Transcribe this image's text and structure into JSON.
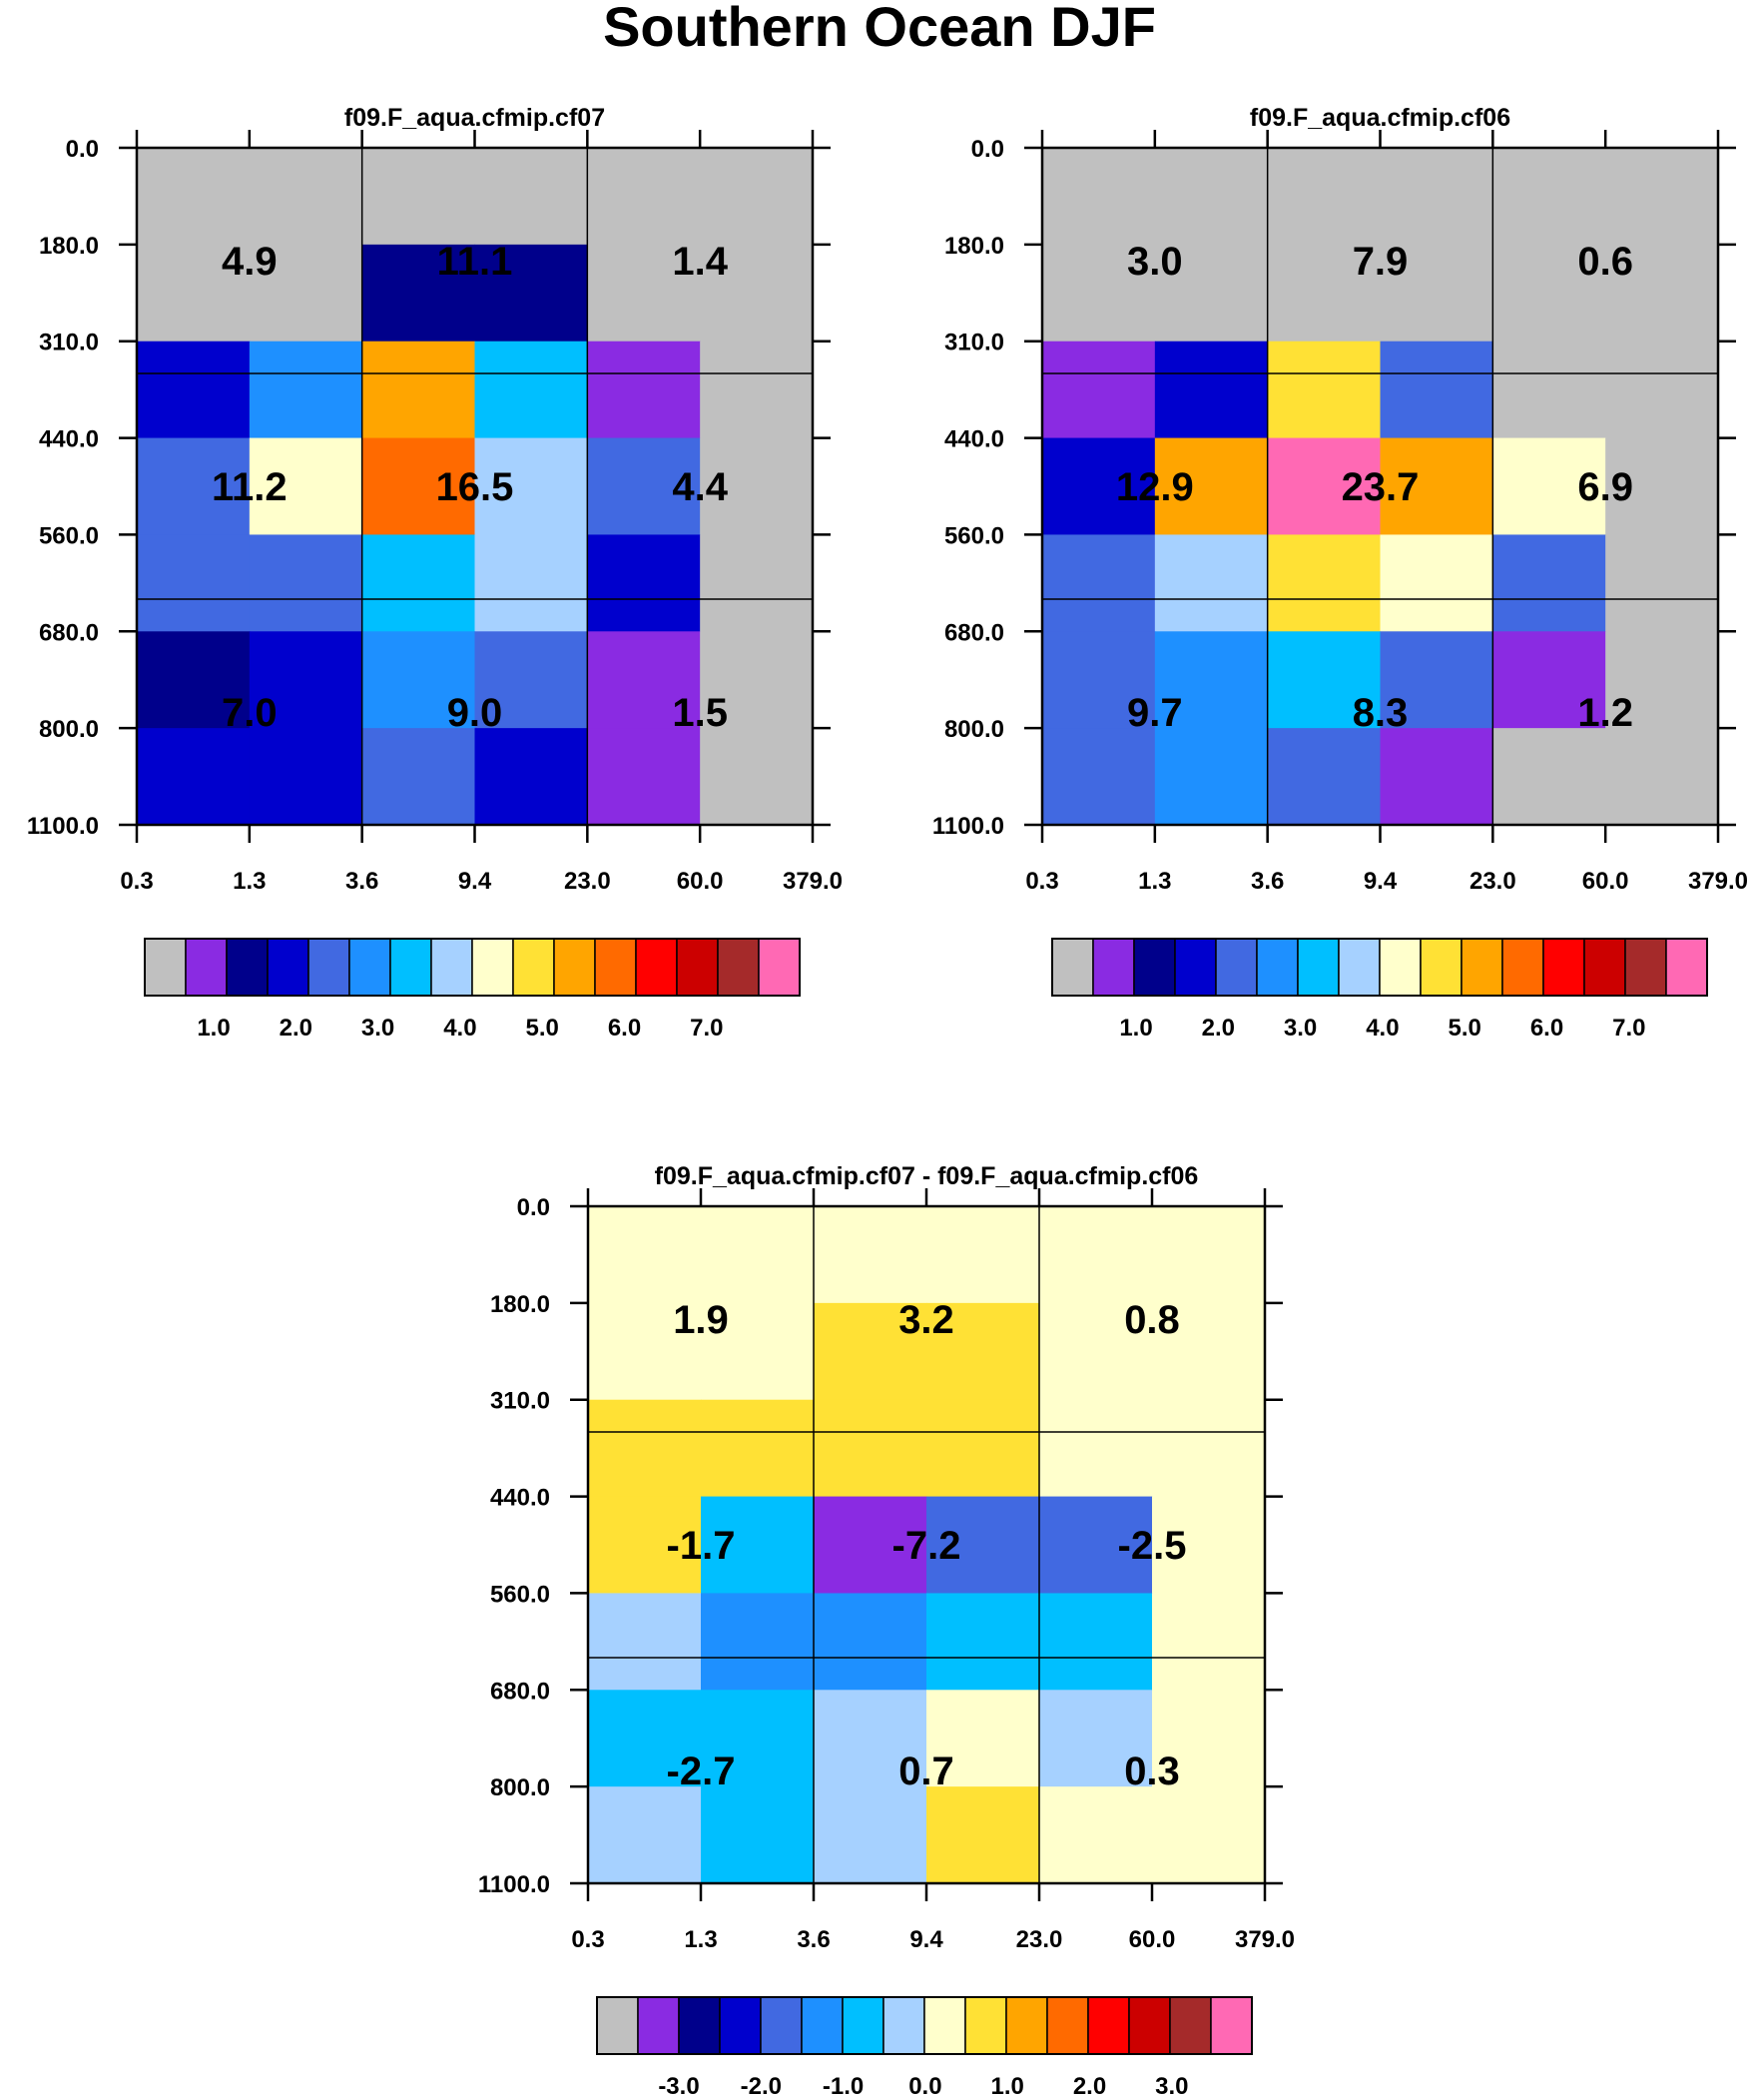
{
  "page_title": "Southern Ocean DJF",
  "colors": {
    "levels": [
      "#c0c0c0",
      "#8a2be2",
      "#00008b",
      "#0000cd",
      "#4169e1",
      "#1e90ff",
      "#00bfff",
      "#a6d1ff",
      "#ffffcc",
      "#ffe135",
      "#ffa500",
      "#ff6a00",
      "#ff0000",
      "#cc0000",
      "#a52a2a",
      "#ff69b4"
    ],
    "border": "#000000"
  },
  "chart_data": [
    {
      "type": "heatmap",
      "title": "f09.F_aqua.cfmip.cf07",
      "x_edges": [
        "0.3",
        "1.3",
        "3.6",
        "9.4",
        "23.0",
        "60.0",
        "379.0"
      ],
      "y_edges": [
        "0.0",
        "180.0",
        "310.0",
        "440.0",
        "560.0",
        "680.0",
        "800.0",
        "1100.0"
      ],
      "cell_levels": [
        [
          0,
          0,
          0,
          0,
          0,
          0
        ],
        [
          0,
          0,
          2,
          2,
          0,
          0
        ],
        [
          3,
          5,
          10,
          6,
          1,
          0
        ],
        [
          4,
          8,
          11,
          7,
          4,
          0
        ],
        [
          4,
          4,
          6,
          7,
          3,
          0
        ],
        [
          2,
          3,
          5,
          4,
          1,
          0
        ],
        [
          3,
          3,
          4,
          3,
          1,
          0
        ]
      ],
      "block_totals": [
        [
          "4.9",
          "11.1",
          "1.4"
        ],
        [
          "11.2",
          "16.5",
          "4.4"
        ],
        [
          "7.0",
          "9.0",
          "1.5"
        ]
      ],
      "colorbar_ticks": [
        "1.0",
        "2.0",
        "3.0",
        "4.0",
        "5.0",
        "6.0",
        "7.0"
      ]
    },
    {
      "type": "heatmap",
      "title": "f09.F_aqua.cfmip.cf06",
      "x_edges": [
        "0.3",
        "1.3",
        "3.6",
        "9.4",
        "23.0",
        "60.0",
        "379.0"
      ],
      "y_edges": [
        "0.0",
        "180.0",
        "310.0",
        "440.0",
        "560.0",
        "680.0",
        "800.0",
        "1100.0"
      ],
      "cell_levels": [
        [
          0,
          0,
          0,
          0,
          0,
          0
        ],
        [
          0,
          0,
          0,
          0,
          0,
          0
        ],
        [
          1,
          3,
          9,
          4,
          0,
          0
        ],
        [
          3,
          10,
          15,
          10,
          8,
          0
        ],
        [
          4,
          7,
          9,
          8,
          4,
          0
        ],
        [
          4,
          5,
          6,
          4,
          1,
          0
        ],
        [
          4,
          5,
          4,
          1,
          0,
          0
        ]
      ],
      "block_totals": [
        [
          "3.0",
          "7.9",
          "0.6"
        ],
        [
          "12.9",
          "23.7",
          "6.9"
        ],
        [
          "9.7",
          "8.3",
          "1.2"
        ]
      ],
      "colorbar_ticks": [
        "1.0",
        "2.0",
        "3.0",
        "4.0",
        "5.0",
        "6.0",
        "7.0"
      ]
    },
    {
      "type": "heatmap",
      "title": "f09.F_aqua.cfmip.cf07 - f09.F_aqua.cfmip.cf06",
      "x_edges": [
        "0.3",
        "1.3",
        "3.6",
        "9.4",
        "23.0",
        "60.0",
        "379.0"
      ],
      "y_edges": [
        "0.0",
        "180.0",
        "310.0",
        "440.0",
        "560.0",
        "680.0",
        "800.0",
        "1100.0"
      ],
      "cell_levels": [
        [
          8,
          8,
          8,
          8,
          8,
          8
        ],
        [
          8,
          8,
          9,
          9,
          8,
          8
        ],
        [
          9,
          9,
          9,
          9,
          8,
          8
        ],
        [
          9,
          6,
          1,
          4,
          4,
          8
        ],
        [
          7,
          5,
          5,
          6,
          6,
          8
        ],
        [
          6,
          6,
          7,
          8,
          7,
          8
        ],
        [
          7,
          6,
          7,
          9,
          8,
          8
        ]
      ],
      "block_totals": [
        [
          "1.9",
          "3.2",
          "0.8"
        ],
        [
          "-1.7",
          "-7.2",
          "-2.5"
        ],
        [
          "-2.7",
          "0.7",
          "0.3"
        ]
      ],
      "colorbar_ticks": [
        "-3.0",
        "-2.0",
        "-1.0",
        "0.0",
        "1.0",
        "2.0",
        "3.0"
      ]
    }
  ]
}
